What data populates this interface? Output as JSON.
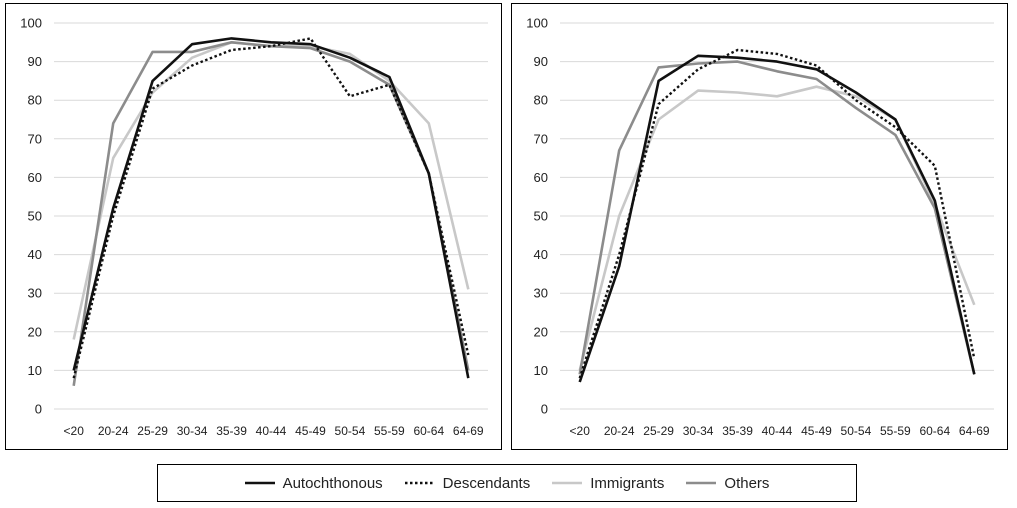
{
  "chart_data": [
    {
      "type": "line",
      "categories": [
        "<20",
        "20-24",
        "25-29",
        "30-34",
        "35-39",
        "40-44",
        "45-49",
        "50-54",
        "55-59",
        "60-64",
        "64-69"
      ],
      "ylim": [
        0,
        100
      ],
      "yticks": [
        0,
        10,
        20,
        30,
        40,
        50,
        60,
        70,
        80,
        90,
        100
      ],
      "grid": true,
      "series": [
        {
          "name": "Autochthonous",
          "values": [
            10,
            52,
            85,
            94.5,
            96,
            95,
            94.5,
            91,
            86,
            61,
            8
          ]
        },
        {
          "name": "Descendants",
          "values": [
            8,
            50,
            83,
            89,
            93,
            94,
            96,
            81,
            84,
            61,
            14
          ]
        },
        {
          "name": "Immigrants",
          "values": [
            18,
            65,
            82,
            91,
            95,
            94,
            94,
            92,
            85,
            74,
            31
          ]
        },
        {
          "name": "Others",
          "values": [
            6,
            74,
            92.5,
            92.5,
            95,
            94,
            93.5,
            90,
            84,
            61,
            10
          ]
        }
      ]
    },
    {
      "type": "line",
      "categories": [
        "<20",
        "20-24",
        "25-29",
        "30-34",
        "35-39",
        "40-44",
        "45-49",
        "50-54",
        "55-59",
        "60-64",
        "64-69"
      ],
      "ylim": [
        0,
        100
      ],
      "yticks": [
        0,
        10,
        20,
        30,
        40,
        50,
        60,
        70,
        80,
        90,
        100
      ],
      "grid": true,
      "series": [
        {
          "name": "Autochthonous",
          "values": [
            7,
            37,
            85,
            91.5,
            91,
            90,
            88,
            82,
            75,
            54,
            9
          ]
        },
        {
          "name": "Descendants",
          "values": [
            8,
            40,
            79,
            88,
            93,
            92,
            89,
            80,
            73,
            63,
            13
          ]
        },
        {
          "name": "Immigrants",
          "values": [
            10,
            50,
            75,
            82.5,
            82,
            81,
            83.5,
            81,
            75,
            53,
            27
          ]
        },
        {
          "name": "Others",
          "values": [
            9,
            67,
            88.5,
            89.5,
            90,
            87.5,
            85.5,
            78,
            71,
            52,
            9
          ]
        }
      ]
    }
  ],
  "legend": {
    "items": [
      {
        "label": "Autochthonous",
        "color": "#111111",
        "dash": "solid"
      },
      {
        "label": "Descendants",
        "color": "#111111",
        "dash": "dotted"
      },
      {
        "label": "Immigrants",
        "color": "#c8c8c8",
        "dash": "solid"
      },
      {
        "label": "Others",
        "color": "#8c8c8c",
        "dash": "solid"
      }
    ]
  },
  "series_styles": {
    "Autochthonous": {
      "color": "#111111",
      "dash": "solid"
    },
    "Descendants": {
      "color": "#111111",
      "dash": "dotted"
    },
    "Immigrants": {
      "color": "#c8c8c8",
      "dash": "solid"
    },
    "Others": {
      "color": "#8c8c8c",
      "dash": "solid"
    }
  }
}
